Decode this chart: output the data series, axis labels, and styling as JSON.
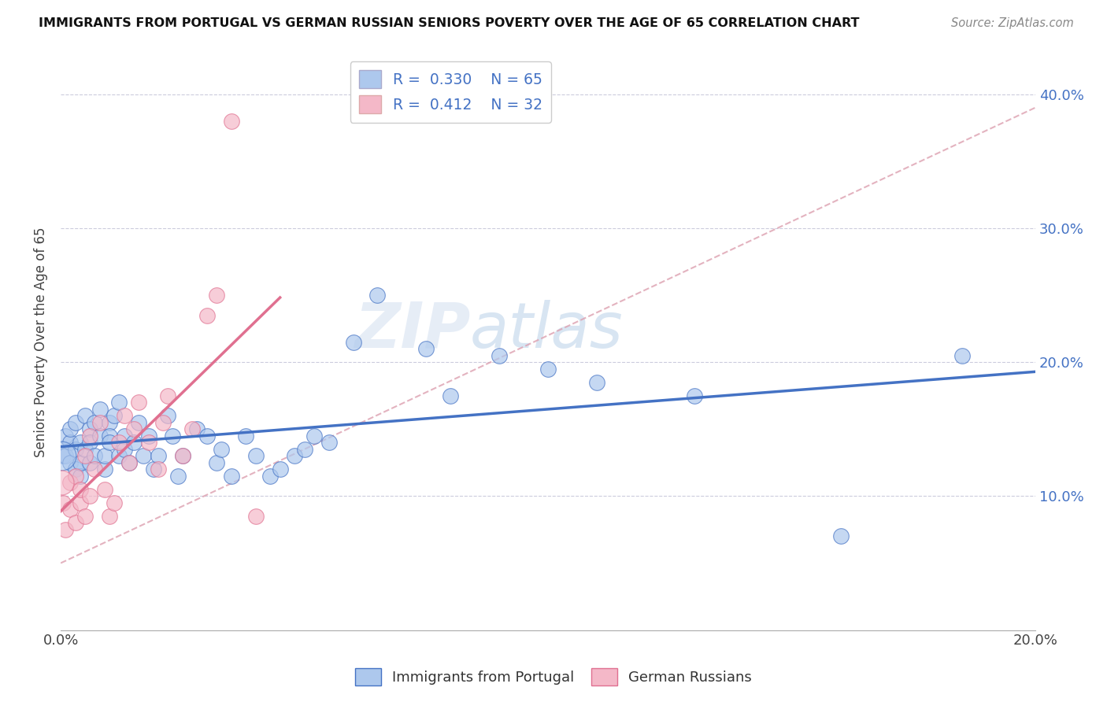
{
  "title": "IMMIGRANTS FROM PORTUGAL VS GERMAN RUSSIAN SENIORS POVERTY OVER THE AGE OF 65 CORRELATION CHART",
  "source": "Source: ZipAtlas.com",
  "ylabel": "Seniors Poverty Over the Age of 65",
  "xlim": [
    0.0,
    0.2
  ],
  "ylim": [
    0.0,
    0.43
  ],
  "xtick_positions": [
    0.0,
    0.05,
    0.1,
    0.15,
    0.2
  ],
  "xtick_labels": [
    "0.0%",
    "",
    "",
    "",
    "20.0%"
  ],
  "ytick_positions": [
    0.1,
    0.2,
    0.3,
    0.4
  ],
  "ytick_labels": [
    "10.0%",
    "20.0%",
    "30.0%",
    "40.0%"
  ],
  "R_blue": "0.330",
  "N_blue": "65",
  "R_pink": "0.412",
  "N_pink": "32",
  "color_blue": "#adc8ed",
  "color_blue_line": "#4472c4",
  "color_pink": "#f4b8c8",
  "color_pink_line": "#e07090",
  "color_trend_dashed": "#dda0b0",
  "legend_label_blue": "Immigrants from Portugal",
  "legend_label_pink": "German Russians",
  "watermark": "ZIPatlas",
  "portugal_x": [
    0.0005,
    0.001,
    0.001,
    0.002,
    0.002,
    0.002,
    0.003,
    0.003,
    0.003,
    0.004,
    0.004,
    0.004,
    0.005,
    0.005,
    0.006,
    0.006,
    0.006,
    0.007,
    0.007,
    0.008,
    0.008,
    0.009,
    0.009,
    0.01,
    0.01,
    0.01,
    0.011,
    0.012,
    0.012,
    0.013,
    0.013,
    0.014,
    0.015,
    0.016,
    0.017,
    0.018,
    0.019,
    0.02,
    0.022,
    0.023,
    0.024,
    0.025,
    0.028,
    0.03,
    0.032,
    0.033,
    0.035,
    0.038,
    0.04,
    0.043,
    0.045,
    0.048,
    0.05,
    0.052,
    0.055,
    0.06,
    0.065,
    0.075,
    0.08,
    0.09,
    0.1,
    0.11,
    0.13,
    0.16,
    0.185
  ],
  "portugal_y": [
    0.13,
    0.145,
    0.13,
    0.14,
    0.125,
    0.15,
    0.135,
    0.12,
    0.155,
    0.14,
    0.115,
    0.125,
    0.16,
    0.135,
    0.125,
    0.15,
    0.14,
    0.155,
    0.13,
    0.145,
    0.165,
    0.12,
    0.13,
    0.155,
    0.145,
    0.14,
    0.16,
    0.13,
    0.17,
    0.145,
    0.135,
    0.125,
    0.14,
    0.155,
    0.13,
    0.145,
    0.12,
    0.13,
    0.16,
    0.145,
    0.115,
    0.13,
    0.15,
    0.145,
    0.125,
    0.135,
    0.115,
    0.145,
    0.13,
    0.115,
    0.12,
    0.13,
    0.135,
    0.145,
    0.14,
    0.215,
    0.25,
    0.21,
    0.175,
    0.205,
    0.195,
    0.185,
    0.175,
    0.07,
    0.205
  ],
  "german_x": [
    0.0005,
    0.001,
    0.002,
    0.002,
    0.003,
    0.003,
    0.004,
    0.004,
    0.005,
    0.005,
    0.006,
    0.006,
    0.007,
    0.008,
    0.009,
    0.01,
    0.011,
    0.012,
    0.013,
    0.014,
    0.015,
    0.016,
    0.018,
    0.02,
    0.021,
    0.022,
    0.025,
    0.027,
    0.03,
    0.032,
    0.035,
    0.04
  ],
  "german_y": [
    0.095,
    0.075,
    0.09,
    0.11,
    0.08,
    0.115,
    0.095,
    0.105,
    0.13,
    0.085,
    0.1,
    0.145,
    0.12,
    0.155,
    0.105,
    0.085,
    0.095,
    0.14,
    0.16,
    0.125,
    0.15,
    0.17,
    0.14,
    0.12,
    0.155,
    0.175,
    0.13,
    0.15,
    0.235,
    0.25,
    0.38,
    0.085
  ]
}
